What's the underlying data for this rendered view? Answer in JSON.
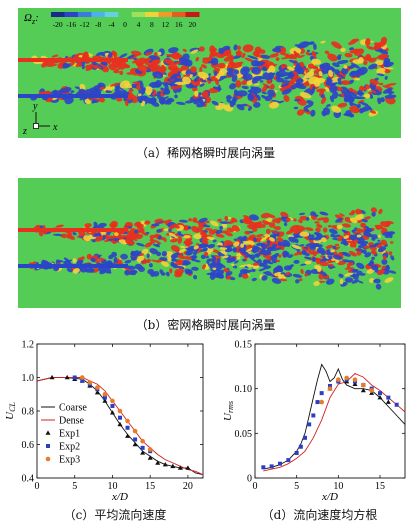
{
  "figure": {
    "panel_a": {
      "caption": "（a）稀网格瞬时展向涡量",
      "colorbar_label": "Ω",
      "colorbar_label_sub": "z",
      "colorbar_ticks": [
        "-20",
        "-16",
        "-12",
        "-8",
        "-4",
        "0",
        "4",
        "8",
        "12",
        "16",
        "20"
      ],
      "axis_y": "y",
      "axis_z": "z",
      "axis_x": "x"
    },
    "panel_b": {
      "caption": "（b）密网格瞬时展向涡量"
    },
    "panel_c": {
      "caption": "（c）平均流向速度"
    },
    "panel_d": {
      "caption": "（d）流向速度均方根"
    },
    "colors": {
      "background_field": "#55cc55",
      "positive_vortex": "#e83020",
      "negative_vortex": "#2c45c8",
      "coarse": "#111111",
      "dense": "#d02020",
      "exp1": "#111111",
      "exp2": "#2b3fc2",
      "exp3": "#e87a2a"
    }
  },
  "chart_data": [
    {
      "id": "c",
      "type": "line",
      "xlabel": "x/D",
      "ylabel": "U",
      "ylabel_sub": "CL",
      "xlim": [
        0,
        22
      ],
      "ylim": [
        0.4,
        1.2
      ],
      "xticks": [
        "0",
        "5",
        "10",
        "15",
        "20"
      ],
      "yticks": [
        "0.4",
        "0.6",
        "0.8",
        "1.0",
        "1.2"
      ],
      "legend": [
        "Coarse",
        "Dense",
        "Exp1",
        "Exp2",
        "Exp3"
      ],
      "series": [
        {
          "name": "Coarse",
          "kind": "line",
          "x": [
            0,
            2,
            4,
            6,
            7,
            8,
            9,
            10,
            11,
            12,
            13,
            14,
            15,
            16,
            17,
            18,
            19,
            20,
            21,
            22
          ],
          "y": [
            0.98,
            1.0,
            1.0,
            0.99,
            0.96,
            0.92,
            0.86,
            0.79,
            0.72,
            0.66,
            0.61,
            0.56,
            0.53,
            0.5,
            0.48,
            0.47,
            0.46,
            0.46,
            0.43,
            0.42
          ]
        },
        {
          "name": "Dense",
          "kind": "line",
          "x": [
            0,
            2,
            4,
            6,
            7,
            8,
            9,
            10,
            11,
            12,
            13,
            14,
            15,
            16,
            17,
            18,
            19,
            20,
            21,
            22
          ],
          "y": [
            0.98,
            1.0,
            1.0,
            1.0,
            0.98,
            0.96,
            0.92,
            0.86,
            0.8,
            0.74,
            0.68,
            0.62,
            0.58,
            0.54,
            0.51,
            0.49,
            0.47,
            0.45,
            0.44,
            0.42
          ]
        },
        {
          "name": "Exp1",
          "kind": "triangle",
          "x": [
            2,
            4,
            5,
            6,
            7,
            8,
            9,
            10,
            11,
            12,
            13,
            14,
            15,
            16,
            17,
            18,
            19,
            20
          ],
          "y": [
            1.0,
            1.0,
            0.99,
            0.98,
            0.95,
            0.91,
            0.86,
            0.79,
            0.72,
            0.65,
            0.6,
            0.55,
            0.52,
            0.49,
            0.48,
            0.47,
            0.46,
            0.46
          ]
        },
        {
          "name": "Exp2",
          "kind": "square",
          "x": [
            5,
            6,
            7,
            8,
            9,
            10,
            11,
            12,
            13,
            14,
            15
          ],
          "y": [
            1.0,
            0.98,
            0.96,
            0.93,
            0.88,
            0.83,
            0.76,
            0.7,
            0.63,
            0.58,
            0.56
          ]
        },
        {
          "name": "Exp3",
          "kind": "circle",
          "x": [
            6,
            7,
            8,
            9,
            10,
            11,
            12,
            13,
            14,
            15
          ],
          "y": [
            1.0,
            0.97,
            0.94,
            0.9,
            0.86,
            0.8,
            0.74,
            0.68,
            0.62,
            0.57
          ]
        }
      ]
    },
    {
      "id": "d",
      "type": "line",
      "xlabel": "x/D",
      "ylabel": "U",
      "ylabel_sub": "rms",
      "xlim": [
        0,
        18
      ],
      "ylim": [
        0,
        0.15
      ],
      "xticks": [
        "0",
        "5",
        "10",
        "15"
      ],
      "yticks": [
        "0",
        "0.05",
        "0.10",
        "0.15"
      ],
      "series": [
        {
          "name": "Coarse",
          "kind": "line",
          "x": [
            1,
            2,
            3,
            4,
            5,
            5.5,
            6,
            6.5,
            7,
            7.5,
            8,
            8.5,
            9,
            9.5,
            10,
            10.5,
            11,
            12,
            13,
            14,
            15,
            16,
            17,
            18
          ],
          "y": [
            0.01,
            0.012,
            0.015,
            0.02,
            0.03,
            0.038,
            0.05,
            0.07,
            0.09,
            0.11,
            0.127,
            0.12,
            0.108,
            0.112,
            0.122,
            0.11,
            0.104,
            0.1,
            0.1,
            0.098,
            0.09,
            0.08,
            0.07,
            0.06
          ]
        },
        {
          "name": "Dense",
          "kind": "line",
          "x": [
            1,
            2,
            3,
            4,
            5,
            6,
            7,
            8,
            9,
            10,
            11,
            12,
            13,
            14,
            15,
            16,
            17,
            18
          ],
          "y": [
            0.008,
            0.01,
            0.012,
            0.016,
            0.022,
            0.03,
            0.045,
            0.065,
            0.09,
            0.105,
            0.108,
            0.117,
            0.113,
            0.104,
            0.098,
            0.09,
            0.082,
            0.074
          ]
        },
        {
          "name": "Exp1",
          "kind": "triangle",
          "x": [
            9,
            10,
            11,
            12,
            13,
            14,
            15,
            16
          ],
          "y": [
            0.1,
            0.11,
            0.108,
            0.105,
            0.098,
            0.095,
            0.09,
            0.085
          ]
        },
        {
          "name": "Exp2",
          "kind": "square",
          "x": [
            1,
            2,
            3,
            4,
            5,
            5.5,
            6,
            6.5,
            7,
            7.5,
            8,
            9,
            10,
            11,
            12,
            13,
            14,
            15,
            16,
            17
          ],
          "y": [
            0.012,
            0.013,
            0.016,
            0.02,
            0.028,
            0.035,
            0.045,
            0.06,
            0.07,
            0.085,
            0.095,
            0.103,
            0.108,
            0.11,
            0.108,
            0.104,
            0.1,
            0.095,
            0.09,
            0.082
          ]
        },
        {
          "name": "Exp3",
          "kind": "circle",
          "x": [
            8,
            9,
            10,
            11,
            12,
            13,
            14
          ],
          "y": [
            0.085,
            0.1,
            0.11,
            0.112,
            0.11,
            0.104,
            0.098
          ]
        }
      ]
    }
  ]
}
